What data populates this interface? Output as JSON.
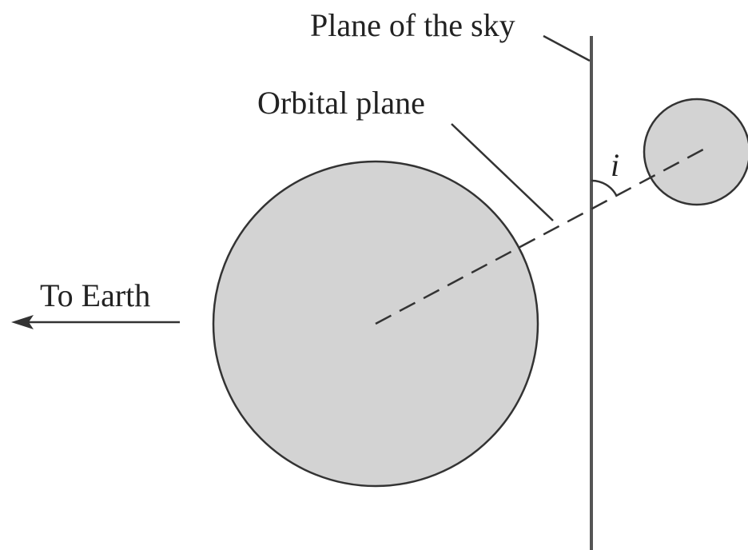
{
  "labels": {
    "plane_of_sky": "Plane of the sky",
    "orbital_plane": "Orbital plane",
    "to_earth": "To Earth",
    "inclination": "i"
  }
}
